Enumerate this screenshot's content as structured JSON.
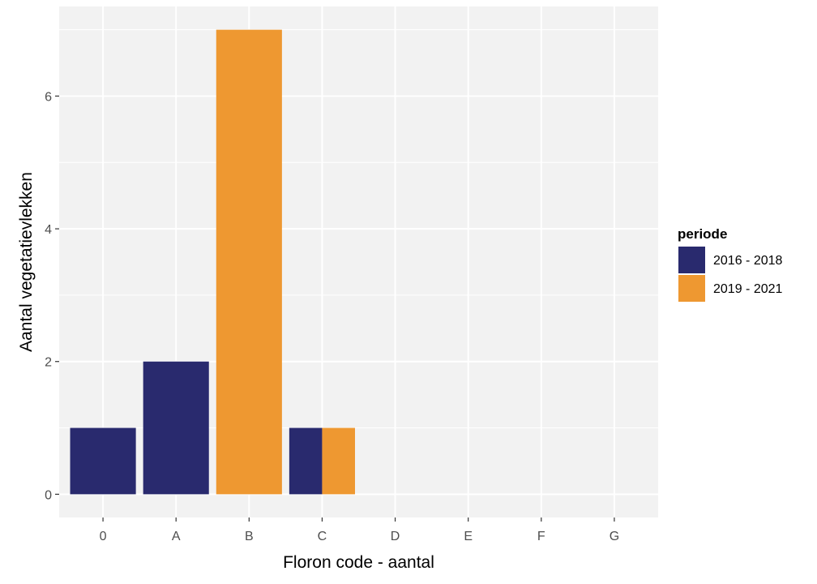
{
  "chart_data": {
    "type": "bar",
    "stacked": true,
    "categories": [
      "0",
      "A",
      "B",
      "C",
      "D",
      "E",
      "F",
      "G"
    ],
    "series": [
      {
        "name": "2016 - 2018",
        "color": "#292A6E",
        "values": [
          1,
          2,
          0,
          1,
          0,
          0,
          0,
          0
        ]
      },
      {
        "name": "2019 - 2021",
        "color": "#EE9831",
        "values": [
          0,
          0,
          7,
          1,
          0,
          0,
          0,
          0
        ]
      }
    ],
    "xlabel": "Floron code - aantal",
    "ylabel": "Aantal vegetatievlekken",
    "yticks": [
      0,
      2,
      4,
      6
    ],
    "ylim": [
      -0.35,
      7.35
    ],
    "legend_title": "periode",
    "legend_position": "right",
    "grid": true,
    "panel_background": "#F2F2F2",
    "grid_color": "#FFFFFF"
  }
}
